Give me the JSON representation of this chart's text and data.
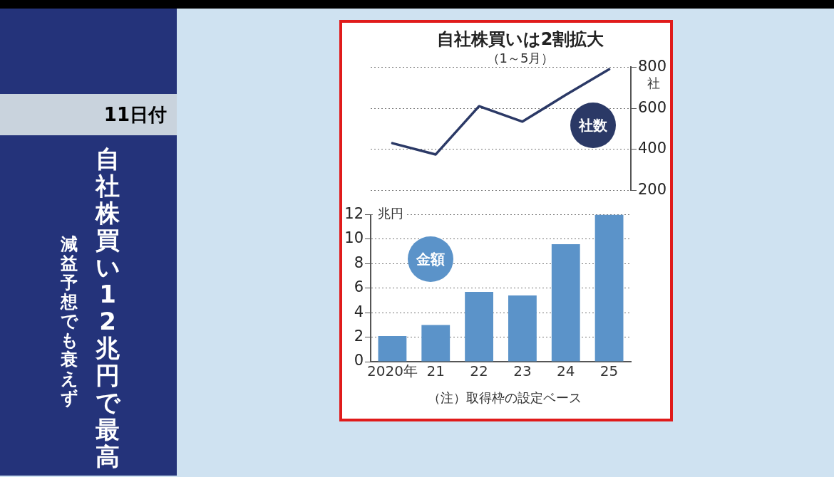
{
  "chart_data": [
    {
      "type": "other",
      "title": "自社株買い 12兆円で最高",
      "subtitle": "減益予想でも衰えず",
      "annotations": [
        "11日付"
      ]
    },
    {
      "type": "line",
      "title": "自社株買いは2割拡大",
      "subtitle": "（1～5月）",
      "ylabel": "社",
      "annotations": [
        "社数"
      ],
      "categories": [
        null,
        null,
        null,
        null,
        null,
        null
      ],
      "series": [
        {
          "color": "#2b3966",
          "values": [
            430,
            375,
            610,
            535,
            665,
            790
          ]
        }
      ],
      "ylim": [
        200,
        800
      ],
      "yticks": [
        200,
        400,
        600,
        800
      ],
      "grid": "y",
      "tick_labels": "y",
      "marker": "none",
      "line_style": "solid"
    },
    {
      "type": "bar",
      "ylabel": "兆円",
      "annotations": [
        "金額",
        "（注）取得枠の設定ベース"
      ],
      "categories": [
        "2020年",
        "21",
        "22",
        "23",
        "24",
        "25"
      ],
      "series": [
        {
          "color": "#5b93c9",
          "values": [
            2.1,
            3.0,
            5.7,
            5.4,
            9.6,
            12.0
          ]
        }
      ],
      "ylim": [
        0,
        12
      ],
      "yticks": [
        0,
        2,
        4,
        6,
        8,
        10,
        12
      ],
      "grid": "y"
    }
  ]
}
